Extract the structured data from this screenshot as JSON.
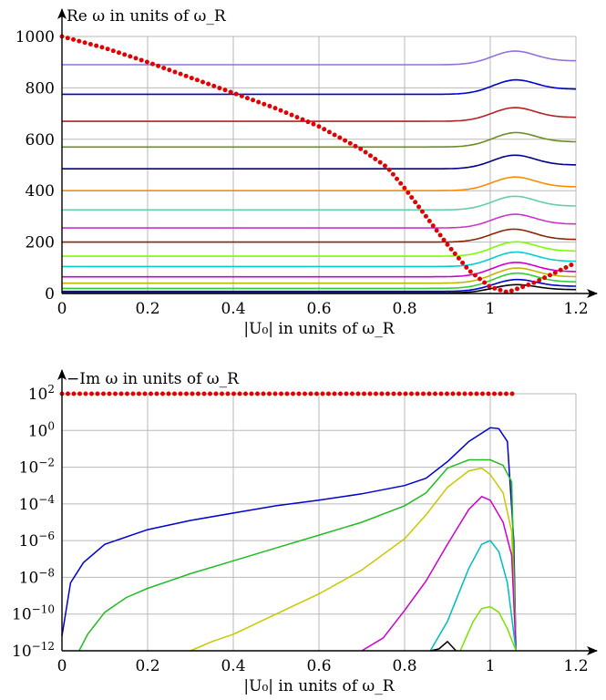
{
  "chart_data": [
    {
      "type": "line",
      "title": "",
      "ylabel": "Re ω in units of ω_R",
      "xlabel": "|U₀| in units of ω_R",
      "xlim": [
        0,
        1.2
      ],
      "ylim": [
        0,
        1000
      ],
      "yscale": "linear",
      "grid": true,
      "xticks": [
        "0",
        "0.2",
        "0.4",
        "0.6",
        "0.8",
        "1",
        "1.2"
      ],
      "yticks": [
        "0",
        "200",
        "400",
        "600",
        "800",
        "1000"
      ],
      "series": [
        {
          "color": "#9370db",
          "base": 890,
          "bump": 45,
          "end": 905
        },
        {
          "color": "#0000cd",
          "base": 775,
          "bump": 45,
          "end": 795
        },
        {
          "color": "#b22222",
          "base": 670,
          "bump": 45,
          "end": 685
        },
        {
          "color": "#6b8e23",
          "base": 570,
          "bump": 45,
          "end": 590
        },
        {
          "color": "#00008b",
          "base": 485,
          "bump": 45,
          "end": 500
        },
        {
          "color": "#ff8c00",
          "base": 400,
          "bump": 45,
          "end": 415
        },
        {
          "color": "#66cdaa",
          "base": 325,
          "bump": 45,
          "end": 340
        },
        {
          "color": "#cc33cc",
          "base": 255,
          "bump": 45,
          "end": 270
        },
        {
          "color": "#8b2500",
          "base": 200,
          "bump": 45,
          "end": 210
        },
        {
          "color": "#7cfc00",
          "base": 145,
          "bump": 45,
          "end": 165
        },
        {
          "color": "#00ced1",
          "base": 105,
          "bump": 45,
          "end": 125
        },
        {
          "color": "#cc00cc",
          "base": 65,
          "bump": 45,
          "end": 85
        },
        {
          "color": "#bdb700",
          "base": 40,
          "bump": 45,
          "end": 65
        },
        {
          "color": "#32cd32",
          "base": 20,
          "bump": 45,
          "end": 45
        },
        {
          "color": "#0000cd",
          "base": 8,
          "bump": 35,
          "end": 28
        },
        {
          "color": "#000000",
          "base": 2,
          "bump": 25,
          "end": 15
        }
      ],
      "dotted_series": {
        "color": "#e00000",
        "x": [
          0,
          0.1,
          0.2,
          0.3,
          0.4,
          0.5,
          0.6,
          0.7,
          0.76,
          0.8,
          0.85,
          0.9,
          0.95,
          1.0,
          1.04,
          1.1,
          1.2
        ],
        "y": [
          1000,
          955,
          900,
          840,
          780,
          720,
          650,
          560,
          490,
          410,
          300,
          190,
          90,
          25,
          5,
          40,
          120
        ]
      }
    },
    {
      "type": "line",
      "title": "",
      "ylabel": "−Im ω in units of ω_R",
      "xlabel": "|U₀| in units of ω_R",
      "xlim": [
        0,
        1.2
      ],
      "ylim": [
        -12,
        2
      ],
      "yscale": "log10",
      "grid": true,
      "xticks": [
        "0",
        "0.2",
        "0.4",
        "0.6",
        "0.8",
        "1",
        "1.2"
      ],
      "yticks": [
        {
          "base": "10",
          "exp": "−12",
          "v": -12
        },
        {
          "base": "10",
          "exp": "−10",
          "v": -10
        },
        {
          "base": "10",
          "exp": "−8",
          "v": -8
        },
        {
          "base": "10",
          "exp": "−6",
          "v": -6
        },
        {
          "base": "10",
          "exp": "−4",
          "v": -4
        },
        {
          "base": "10",
          "exp": "−2",
          "v": -2
        },
        {
          "base": "10",
          "exp": "0",
          "v": 0
        },
        {
          "base": "10",
          "exp": "2",
          "v": 2
        }
      ],
      "series": [
        {
          "color": "#0000cd",
          "x": [
            0,
            0.02,
            0.05,
            0.1,
            0.2,
            0.3,
            0.4,
            0.5,
            0.6,
            0.7,
            0.8,
            0.85,
            0.9,
            0.95,
            1.0,
            1.02,
            1.04,
            1.055,
            1.06
          ],
          "y": [
            -11.2,
            -8.3,
            -7.2,
            -6.2,
            -5.4,
            -4.9,
            -4.5,
            -4.1,
            -3.8,
            -3.45,
            -3.0,
            -2.6,
            -1.7,
            -0.6,
            0.15,
            0.1,
            -0.6,
            -6,
            -12
          ]
        },
        {
          "color": "#22bb22",
          "x": [
            0.04,
            0.06,
            0.1,
            0.15,
            0.2,
            0.3,
            0.4,
            0.5,
            0.6,
            0.7,
            0.8,
            0.85,
            0.9,
            0.95,
            1.0,
            1.03,
            1.05,
            1.06
          ],
          "y": [
            -12,
            -11.1,
            -9.9,
            -9.1,
            -8.6,
            -7.8,
            -7.1,
            -6.4,
            -5.7,
            -5.0,
            -4.1,
            -3.4,
            -2.05,
            -1.6,
            -1.6,
            -1.9,
            -2.8,
            -12
          ]
        },
        {
          "color": "#c8c800",
          "x": [
            0.3,
            0.35,
            0.4,
            0.5,
            0.6,
            0.7,
            0.8,
            0.85,
            0.9,
            0.95,
            0.98,
            1.0,
            1.03,
            1.05,
            1.06
          ],
          "y": [
            -12,
            -11.5,
            -11.1,
            -10.0,
            -8.9,
            -7.6,
            -5.9,
            -4.6,
            -3.1,
            -2.2,
            -2.05,
            -2.4,
            -3.4,
            -5.5,
            -12
          ]
        },
        {
          "color": "#cc00cc",
          "x": [
            0.7,
            0.75,
            0.8,
            0.85,
            0.9,
            0.95,
            0.98,
            1.0,
            1.03,
            1.05,
            1.06
          ],
          "y": [
            -12,
            -11.3,
            -9.8,
            -8.2,
            -6.2,
            -4.3,
            -3.6,
            -3.8,
            -5.0,
            -6.8,
            -12
          ]
        },
        {
          "color": "#00bbbb",
          "x": [
            0.86,
            0.9,
            0.95,
            0.98,
            1.0,
            1.02,
            1.04,
            1.06
          ],
          "y": [
            -12,
            -10.4,
            -7.5,
            -6.2,
            -6.0,
            -6.6,
            -8.3,
            -12
          ]
        },
        {
          "color": "#7ce000",
          "x": [
            0.93,
            0.96,
            0.98,
            1.0,
            1.02,
            1.04,
            1.06
          ],
          "y": [
            -12,
            -10.4,
            -9.7,
            -9.6,
            -9.9,
            -10.8,
            -12
          ]
        },
        {
          "color": "#000000",
          "x": [
            0.86,
            0.88,
            0.9,
            0.92
          ],
          "y": [
            -12,
            -11.9,
            -11.5,
            -12
          ]
        }
      ],
      "dotted_series": {
        "color": "#e00000",
        "x_start": 0,
        "x_end": 1.06,
        "y": 2
      }
    }
  ]
}
